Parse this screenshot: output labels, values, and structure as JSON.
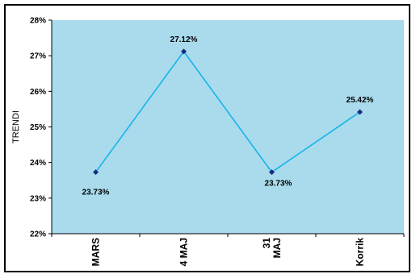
{
  "chart_data": {
    "type": "line",
    "ylabel": "TRENDI",
    "xlabel": "",
    "categories": [
      "MARS",
      "4 MAJ",
      "31\nMAJ",
      "Korrik"
    ],
    "series": [
      {
        "values": [
          23.73,
          27.12,
          23.73,
          25.42
        ]
      }
    ],
    "data_labels": [
      "23.73%",
      "27.12%",
      "23.73%",
      "25.42%"
    ],
    "ylim": [
      22,
      28
    ],
    "yticks": [
      "22%",
      "23%",
      "24%",
      "25%",
      "26%",
      "27%",
      "28%"
    ],
    "grid": false,
    "legend": "none",
    "colors": {
      "plot_bg": "#a9dbec",
      "line": "#18b4ea",
      "marker": "#1a2a80",
      "axis": "#000000"
    }
  }
}
